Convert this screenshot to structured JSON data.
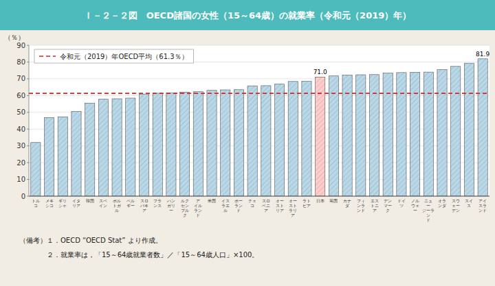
{
  "chart_data": {
    "type": "bar",
    "title": "Ｉ－２－２図　OECD諸国の女性（15～64歳）の就業率（令和元（2019）年）",
    "ylabel": "（％）",
    "categories": [
      "トル\nコ",
      "メキ\nシコ",
      "ギリ\nシャ",
      "イタ\nリア",
      "韓国",
      "スペ\nイン",
      "ポル\nトガ\nル",
      "ベル\nギー",
      "スロ\nバキ\nア",
      "フラ\nンス",
      "ハン\nガリ\nー",
      "ルク\nセン\nブル\nク",
      "ア\nイル\nラン\nド",
      "米国",
      "イス\nラエ\nル",
      "ポー\nラン\nド",
      "チェ\nコ",
      "スロ\nベニ\nア",
      "オー\nスト\nリア",
      "オー\nスト\nラリ\nア",
      "ラト\nビア",
      "日本",
      "英国",
      "カナ\nダ",
      "フィ\nンラ\nンド",
      "エス\nトニ\nア",
      "デン\nマー\nク",
      "ドイ\nツ",
      "ノル\nウェ\nー",
      "ニュ\nー\nジーラ\nン\nド",
      "オラ\nンダ",
      "スウ\nェー\nデン",
      "スイ\nス",
      "アイ\nスラ\nンド"
    ],
    "values": [
      32.0,
      46.9,
      47.3,
      50.5,
      55.4,
      57.8,
      58.1,
      58.5,
      60.9,
      61.4,
      61.5,
      62.0,
      62.3,
      63.1,
      63.4,
      63.5,
      65.8,
      65.9,
      66.8,
      68.4,
      68.5,
      71.0,
      71.7,
      72.2,
      72.4,
      72.5,
      73.4,
      73.7,
      73.9,
      74.0,
      75.5,
      77.4,
      79.3,
      81.9
    ],
    "value_labels": [
      null,
      null,
      null,
      null,
      null,
      null,
      null,
      null,
      null,
      null,
      null,
      null,
      null,
      null,
      null,
      null,
      null,
      null,
      null,
      null,
      null,
      "71.0",
      null,
      null,
      null,
      null,
      null,
      null,
      null,
      null,
      null,
      null,
      null,
      "81.9"
    ],
    "colors": [
      "#B8D8E8",
      "#B8D8E8",
      "#B8D8E8",
      "#B8D8E8",
      "#B8D8E8",
      "#B8D8E8",
      "#B8D8E8",
      "#B8D8E8",
      "#B8D8E8",
      "#B8D8E8",
      "#B8D8E8",
      "#B8D8E8",
      "#B8D8E8",
      "#B8D8E8",
      "#B8D8E8",
      "#B8D8E8",
      "#B8D8E8",
      "#B8D8E8",
      "#B8D8E8",
      "#B8D8E8",
      "#B8D8E8",
      "#FFCCCC",
      "#B8D8E8",
      "#B8D8E8",
      "#B8D8E8",
      "#B8D8E8",
      "#B8D8E8",
      "#B8D8E8",
      "#B8D8E8",
      "#B8D8E8",
      "#B8D8E8",
      "#B8D8E8",
      "#B8D8E8",
      "#B8D8E8"
    ],
    "reference_line": {
      "name": "令和元（2019）年OECD平均（61.3％）",
      "value": 61.3,
      "color": "#DD2222",
      "line_style": "dashed"
    },
    "legend": "upper left",
    "ylim": [
      0,
      90
    ],
    "yticks": [
      0,
      10,
      20,
      30,
      40,
      50,
      60,
      70,
      80,
      90
    ],
    "grid": true,
    "notes": [
      "（備考）１．OECD “OECD Stat” より作成。",
      "　　　　２．就業率は，「15～64歳就業者数」／「15～64歳人口」×100。"
    ]
  }
}
